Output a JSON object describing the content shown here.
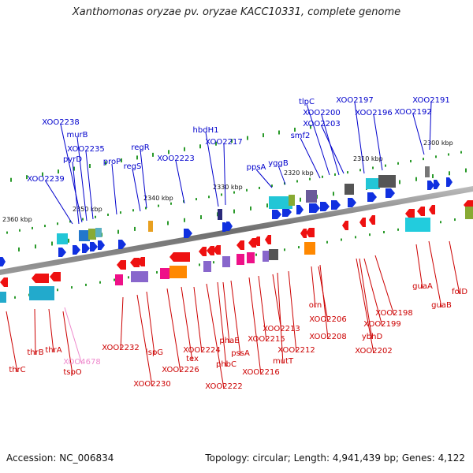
{
  "header": {
    "title": "Xanthomonas oryzae pv. oryzae KACC10331, complete genome"
  },
  "footer": {
    "accession": "Accession: NC_006834",
    "summary": "Topology: circular; Length: 4,941,439 bp; Genes: 4,122"
  },
  "colors": {
    "forward_label": "#0000cc",
    "reverse_label": "#cc0000",
    "pseudo_label": "#ee88cc",
    "backbone": "#8a8a8a",
    "tick": "#2a9a2a"
  },
  "scale_labels": [
    "2360 kbp",
    "2350 kbp",
    "2340 kbp",
    "2330 kbp",
    "2320 kbp",
    "2310 kbp",
    "2300 kbp"
  ],
  "forward_genes": [
    "XOO2239",
    "XOO2238",
    "murB",
    "pyrD",
    "XOO2235",
    "proP",
    "regS",
    "regR",
    "XOO2223",
    "hbdH1",
    "XOO2217",
    "ppsA",
    "yggB",
    "smf2",
    "tlpC",
    "XOO2203",
    "XOO2200",
    "XOO2197",
    "XOO2196",
    "XOO2192",
    "XOO2191"
  ],
  "reverse_genes": [
    "thrC",
    "thrB",
    "thrA",
    "tspO",
    "XOO2232",
    "XOO2230",
    "ispG",
    "XOO2226",
    "tex",
    "XOO2224",
    "phbC",
    "XOO2222",
    "phaE",
    "pssA",
    "XOO2216",
    "XOO2215",
    "XOO2213",
    "mutT",
    "XOO2212",
    "orn",
    "XOO2206",
    "XOO2208",
    "ybhD",
    "XOO2199",
    "XOO2198",
    "XOO2202",
    "guaA",
    "guaB",
    "folD"
  ],
  "pseudo_genes": [
    "XOO4678"
  ]
}
